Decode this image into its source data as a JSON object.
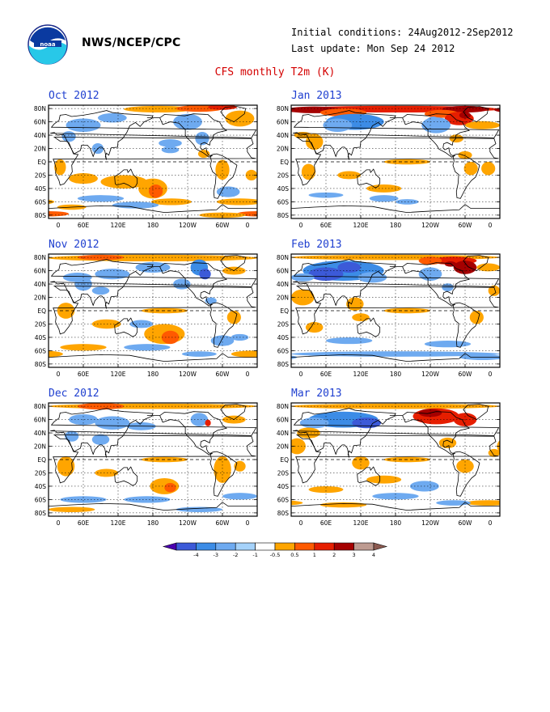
{
  "header": {
    "agency": "NWS/NCEP/CPC",
    "initial_conditions": "Initial conditions: 24Aug2012-2Sep2012",
    "last_update": "Last update: Mon Sep 24 2012",
    "title": "CFS monthly T2m (K)"
  },
  "axes": {
    "lat_labels": [
      "80N",
      "60N",
      "40N",
      "20N",
      "EQ",
      "20S",
      "40S",
      "60S",
      "80S"
    ],
    "lon_labels": [
      "0",
      "60E",
      "120E",
      "180",
      "120W",
      "60W",
      "0"
    ]
  },
  "panels": [
    {
      "title": "Oct 2012"
    },
    {
      "title": "Jan 2013"
    },
    {
      "title": "Nov 2012"
    },
    {
      "title": "Feb 2013"
    },
    {
      "title": "Dec 2012"
    },
    {
      "title": "Mar 2013"
    }
  ],
  "colorbar": {
    "labels": [
      "-4",
      "-3",
      "-2",
      "-1",
      "-0.5",
      "0.5",
      "1",
      "2",
      "3",
      "4"
    ],
    "colors": [
      "#4b00b0",
      "#3c5ad8",
      "#3c8ce6",
      "#6eaaf0",
      "#a5d2fa",
      "#ffffff",
      "#ffa500",
      "#ff5a00",
      "#e61e00",
      "#a50000",
      "#be9b91",
      "#8c5a50"
    ]
  },
  "palette": {
    "warm_weak": "#ffa500",
    "warm_mid": "#ff5a00",
    "warm_strong": "#e61e00",
    "warm_max": "#a50000",
    "cool_weak": "#6eaaf0",
    "cool_mid": "#3c8ce6",
    "cool_strong": "#3c5ad8",
    "title_red": "#d40000",
    "panel_title_blue": "#2040d0"
  }
}
